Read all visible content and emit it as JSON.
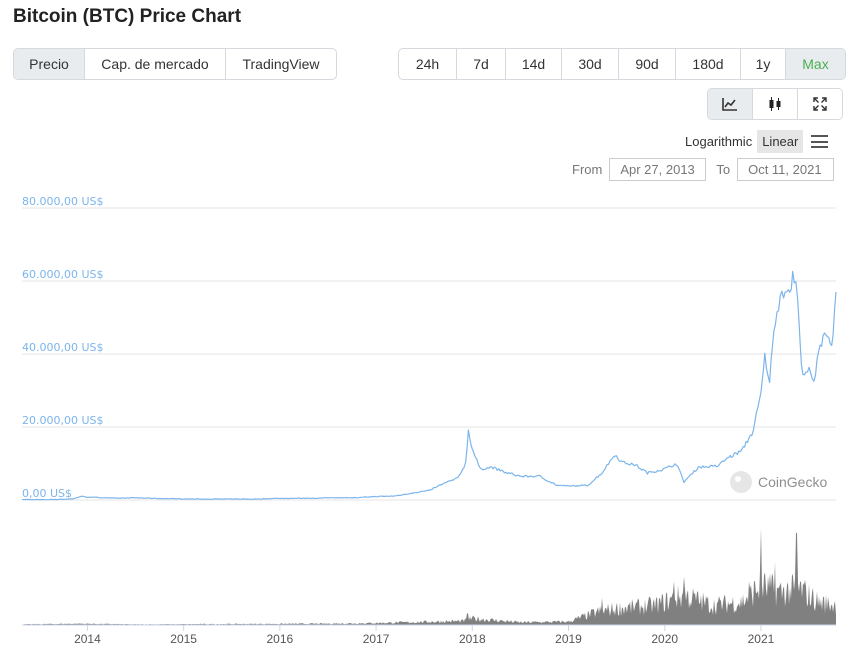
{
  "header": {
    "title": "Bitcoin (BTC) Price Chart"
  },
  "chart_tabs": [
    {
      "label": "Precio",
      "active": true
    },
    {
      "label": "Cap. de mercado",
      "active": false
    },
    {
      "label": "TradingView",
      "active": false
    }
  ],
  "ranges": [
    {
      "label": "24h"
    },
    {
      "label": "7d"
    },
    {
      "label": "14d"
    },
    {
      "label": "30d"
    },
    {
      "label": "90d"
    },
    {
      "label": "180d"
    },
    {
      "label": "1y"
    },
    {
      "label": "Max",
      "active": true
    }
  ],
  "view_icons": [
    "line-chart-icon",
    "candlestick-icon",
    "fullscreen-icon"
  ],
  "scale": {
    "logarithmic": "Logarithmic",
    "linear": "Linear",
    "active": "linear"
  },
  "date_range": {
    "from_label": "From",
    "from": "Apr 27, 2013",
    "to_label": "To",
    "to": "Oct 11, 2021"
  },
  "watermark": "CoinGecko",
  "colors": {
    "line": "#7cb5ec",
    "volume": "#808080",
    "active_range": "#4caf50"
  },
  "chart_data": {
    "type": "line",
    "title": "",
    "xlabel": "",
    "ylabel": "",
    "ylim": [
      0,
      80000
    ],
    "yticks": [
      "0,00 US$",
      "20.000,00 US$",
      "40.000,00 US$",
      "60.000,00 US$",
      "80.000,00 US$"
    ],
    "ytick_values": [
      0,
      20000,
      40000,
      60000,
      80000
    ],
    "xlim": [
      2013.32,
      2021.78
    ],
    "xticks": [
      "2014",
      "2015",
      "2016",
      "2017",
      "2018",
      "2019",
      "2020",
      "2021"
    ],
    "xtick_values": [
      2014,
      2015,
      2016,
      2017,
      2018,
      2019,
      2020,
      2021
    ],
    "grid": true,
    "series": [
      {
        "kind": "price",
        "points": [
          [
            2013.32,
            130
          ],
          [
            2013.6,
            100
          ],
          [
            2013.85,
            300
          ],
          [
            2013.93,
            1000
          ],
          [
            2014.0,
            800
          ],
          [
            2014.1,
            700
          ],
          [
            2014.3,
            500
          ],
          [
            2014.5,
            600
          ],
          [
            2014.75,
            400
          ],
          [
            2015.0,
            300
          ],
          [
            2015.25,
            240
          ],
          [
            2015.5,
            260
          ],
          [
            2015.75,
            240
          ],
          [
            2015.9,
            400
          ],
          [
            2016.0,
            430
          ],
          [
            2016.4,
            500
          ],
          [
            2016.55,
            650
          ],
          [
            2016.8,
            620
          ],
          [
            2017.0,
            950
          ],
          [
            2017.2,
            1100
          ],
          [
            2017.4,
            2000
          ],
          [
            2017.55,
            2600
          ],
          [
            2017.7,
            4500
          ],
          [
            2017.85,
            6000
          ],
          [
            2017.93,
            10000
          ],
          [
            2017.96,
            19000
          ],
          [
            2018.0,
            14000
          ],
          [
            2018.08,
            8500
          ],
          [
            2018.2,
            9000
          ],
          [
            2018.35,
            7500
          ],
          [
            2018.5,
            6500
          ],
          [
            2018.7,
            6500
          ],
          [
            2018.88,
            4000
          ],
          [
            2019.0,
            3800
          ],
          [
            2019.2,
            4000
          ],
          [
            2019.35,
            7500
          ],
          [
            2019.48,
            12500
          ],
          [
            2019.55,
            10500
          ],
          [
            2019.7,
            9500
          ],
          [
            2019.82,
            7400
          ],
          [
            2020.0,
            8500
          ],
          [
            2020.12,
            10000
          ],
          [
            2020.2,
            5000
          ],
          [
            2020.35,
            9000
          ],
          [
            2020.55,
            9300
          ],
          [
            2020.65,
            11500
          ],
          [
            2020.8,
            13500
          ],
          [
            2020.92,
            19000
          ],
          [
            2021.0,
            29000
          ],
          [
            2021.04,
            39000
          ],
          [
            2021.09,
            33000
          ],
          [
            2021.15,
            50000
          ],
          [
            2021.2,
            56000
          ],
          [
            2021.27,
            59000
          ],
          [
            2021.3,
            55000
          ],
          [
            2021.33,
            63000
          ],
          [
            2021.38,
            56000
          ],
          [
            2021.42,
            36000
          ],
          [
            2021.5,
            35000
          ],
          [
            2021.55,
            32000
          ],
          [
            2021.6,
            40000
          ],
          [
            2021.66,
            47000
          ],
          [
            2021.72,
            43000
          ],
          [
            2021.75,
            45000
          ],
          [
            2021.78,
            57000
          ]
        ]
      },
      {
        "kind": "volume",
        "relative": true,
        "points": [
          [
            2013.32,
            0.01
          ],
          [
            2013.9,
            0.02
          ],
          [
            2014.5,
            0.01
          ],
          [
            2015.5,
            0.015
          ],
          [
            2016.5,
            0.02
          ],
          [
            2017.0,
            0.03
          ],
          [
            2017.9,
            0.06
          ],
          [
            2018.0,
            0.1
          ],
          [
            2018.5,
            0.04
          ],
          [
            2019.0,
            0.05
          ],
          [
            2019.3,
            0.2
          ],
          [
            2019.5,
            0.25
          ],
          [
            2019.9,
            0.3
          ],
          [
            2020.2,
            0.45
          ],
          [
            2020.5,
            0.3
          ],
          [
            2020.8,
            0.35
          ],
          [
            2021.0,
            0.6
          ],
          [
            2021.2,
            0.5
          ],
          [
            2021.4,
            0.55
          ],
          [
            2021.6,
            0.35
          ],
          [
            2021.78,
            0.3
          ]
        ],
        "peaks": [
          [
            2017.95,
            0.12
          ],
          [
            2019.35,
            0.28
          ],
          [
            2020.1,
            0.45
          ],
          [
            2020.2,
            0.5
          ],
          [
            2020.88,
            0.45
          ],
          [
            2021.0,
            1.0
          ],
          [
            2021.15,
            0.65
          ],
          [
            2021.37,
            0.95
          ]
        ]
      }
    ]
  }
}
